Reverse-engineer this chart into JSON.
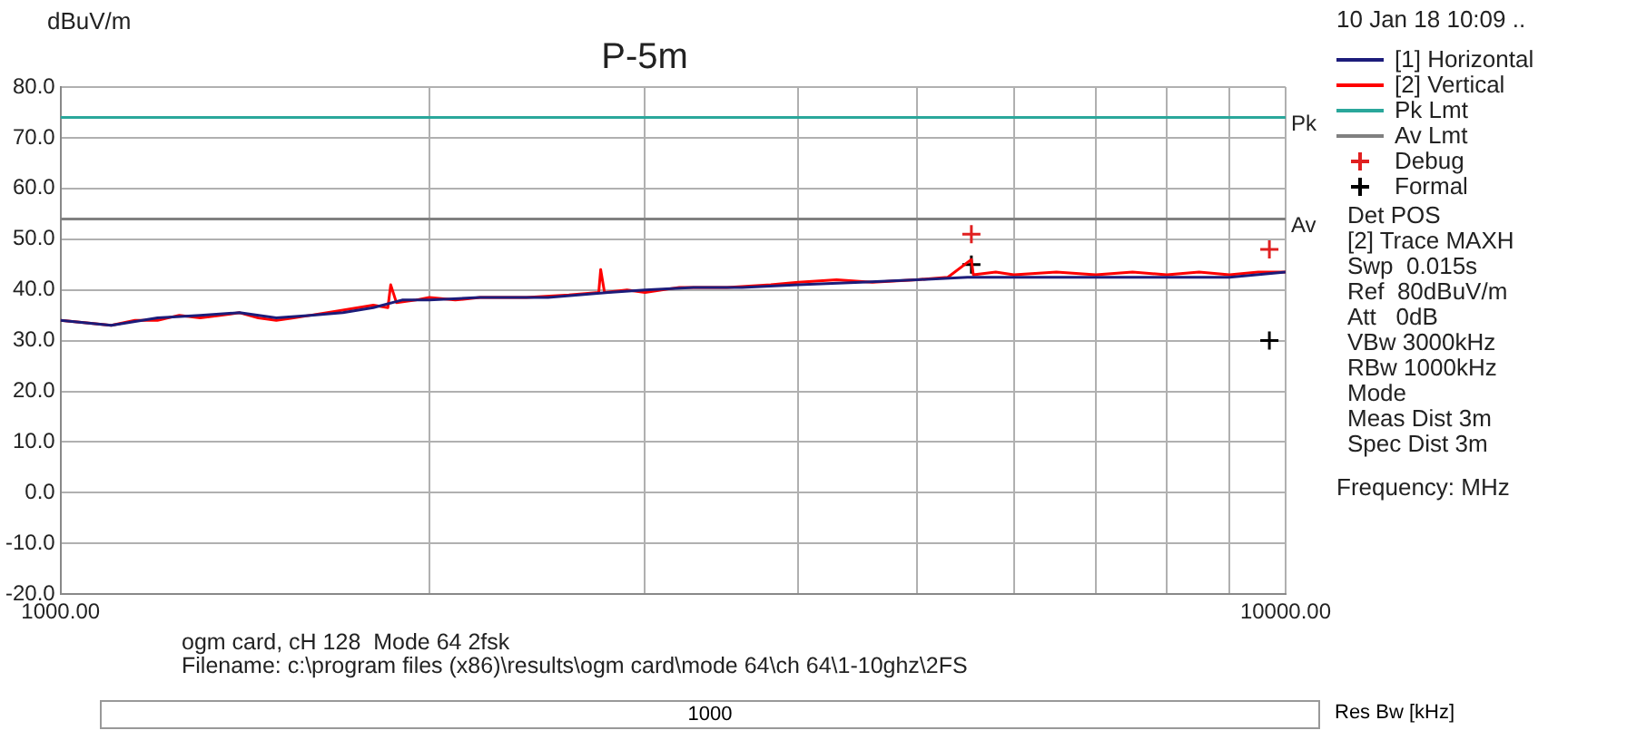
{
  "chart_data": {
    "type": "line",
    "title": "P-5m",
    "ylabel": "dBuV/m",
    "xlabel": "Frequency: MHz",
    "log": "x",
    "xlim": [
      1000,
      10000
    ],
    "xticks": [
      {
        "value": 1000,
        "label": "1000.00"
      },
      {
        "value": 2000,
        "label": null
      },
      {
        "value": 3000,
        "label": null
      },
      {
        "value": 4000,
        "label": null
      },
      {
        "value": 5000,
        "label": null
      },
      {
        "value": 6000,
        "label": null
      },
      {
        "value": 7000,
        "label": null
      },
      {
        "value": 8000,
        "label": null
      },
      {
        "value": 9000,
        "label": null
      },
      {
        "value": 10000,
        "label": "10000.00"
      }
    ],
    "ylim": [
      -20,
      80
    ],
    "yticks": [
      {
        "value": -20,
        "label": "-20.0"
      },
      {
        "value": -10,
        "label": "-10.0"
      },
      {
        "value": 0,
        "label": "0.0"
      },
      {
        "value": 10,
        "label": "10.0"
      },
      {
        "value": 20,
        "label": "20.0"
      },
      {
        "value": 30,
        "label": "30.0"
      },
      {
        "value": 40,
        "label": "40.0"
      },
      {
        "value": 50,
        "label": "50.0"
      },
      {
        "value": 60,
        "label": "60.0"
      },
      {
        "value": 70,
        "label": "70.0"
      },
      {
        "value": 80,
        "label": "80.0"
      }
    ],
    "grid": true,
    "legend": "right",
    "line_style": "solid",
    "series": [
      {
        "name": "[1] Horizontal",
        "color": "#1c1c7a",
        "type": "line",
        "marker": "none",
        "x": [
          1000,
          1100,
          1200,
          1300,
          1400,
          1500,
          1600,
          1700,
          1800,
          1900,
          2000,
          2200,
          2500,
          2800,
          3000,
          3300,
          3600,
          4000,
          4500,
          5000,
          5500,
          6000,
          7000,
          8000,
          9000,
          10000
        ],
        "values": [
          34,
          33,
          34.5,
          35,
          35.5,
          34.5,
          35,
          35.5,
          36.5,
          38,
          38,
          38.5,
          38.5,
          39.5,
          40,
          40.5,
          40.5,
          41,
          41.5,
          42,
          42.5,
          42.5,
          42.5,
          42.5,
          42.5,
          43.5
        ]
      },
      {
        "name": "[2] Vertical",
        "color": "#ff0000",
        "type": "line",
        "marker": "none",
        "x": [
          1000,
          1050,
          1100,
          1150,
          1200,
          1250,
          1300,
          1350,
          1400,
          1450,
          1500,
          1550,
          1600,
          1700,
          1800,
          1850,
          1860,
          1880,
          1950,
          2000,
          2100,
          2200,
          2400,
          2600,
          2750,
          2760,
          2780,
          2900,
          3000,
          3200,
          3500,
          3800,
          4000,
          4300,
          4600,
          5000,
          5300,
          5540,
          5560,
          5800,
          6000,
          6500,
          7000,
          7500,
          8000,
          8500,
          9000,
          9500,
          10000
        ],
        "values": [
          34,
          33.5,
          33,
          34,
          34,
          35,
          34.5,
          35,
          35.5,
          34.5,
          34,
          34.5,
          35,
          36,
          37,
          36.5,
          41,
          37.5,
          38,
          38.5,
          38,
          38.5,
          38.5,
          39,
          39.5,
          44,
          39.5,
          40,
          39.5,
          40.5,
          40.5,
          41,
          41.5,
          42,
          41.5,
          42,
          42.5,
          46,
          43,
          43.5,
          43,
          43.5,
          43,
          43.5,
          43,
          43.5,
          43,
          43.5,
          43.5
        ]
      },
      {
        "name": "Pk Lmt",
        "color": "#2aa79b",
        "type": "line",
        "marker": "none",
        "x": [
          1000,
          10000
        ],
        "values": [
          74,
          74
        ]
      },
      {
        "name": "Av Lmt",
        "color": "#808080",
        "type": "line",
        "marker": "none",
        "x": [
          1000,
          10000
        ],
        "values": [
          54,
          54
        ]
      },
      {
        "name": "Debug",
        "color": "#e02020",
        "type": "scatter",
        "marker": "cross",
        "x": [
          5540,
          9700
        ],
        "values": [
          51,
          48
        ]
      },
      {
        "name": "Formal",
        "color": "#000000",
        "type": "scatter",
        "marker": "cross",
        "x": [
          5540,
          9700
        ],
        "values": [
          45,
          30
        ]
      }
    ],
    "annotations": [
      "10 Jan 18 10:09 ..",
      {
        "text": "Pk",
        "x": 10000,
        "y": 74
      },
      {
        "text": "Av",
        "x": 10000,
        "y": 54
      },
      "Det POS",
      "[2] Trace MAXH",
      "Swp  0.015s",
      "Ref  80dBuV/m",
      "Att   0dB",
      "VBw 3000kHz",
      "RBw 1000kHz",
      "Mode",
      "Meas Dist 3m",
      "Spec Dist 3m",
      "ogm card, cH 128  Mode 64 2fsk",
      "Filename: c:\\program files (x86)\\results\\ogm card\\mode 64\\ch 64\\1-10ghz\\2FS",
      "1000",
      "Res Bw [kHz]"
    ]
  }
}
